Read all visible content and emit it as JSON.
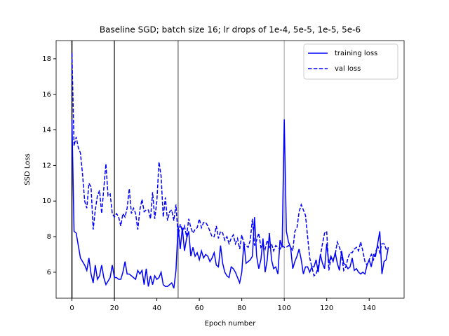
{
  "chart_data": {
    "type": "line",
    "title": "Baseline SGD; batch size 16; lr drops of 1e-4, 5e-5, 1e-5, 5e-6",
    "xlabel": "Epoch number",
    "ylabel": "SSD Loss",
    "x": [
      0,
      1,
      2,
      3,
      4,
      5,
      6,
      7,
      8,
      9,
      10,
      11,
      12,
      13,
      14,
      15,
      16,
      17,
      18,
      19,
      20,
      21,
      22,
      23,
      24,
      25,
      26,
      27,
      28,
      29,
      30,
      31,
      32,
      33,
      34,
      35,
      36,
      37,
      38,
      39,
      40,
      41,
      42,
      43,
      44,
      45,
      46,
      47,
      48,
      49,
      50,
      51,
      52,
      53,
      54,
      55,
      56,
      57,
      58,
      59,
      60,
      61,
      62,
      63,
      64,
      65,
      66,
      67,
      68,
      69,
      70,
      71,
      72,
      73,
      74,
      75,
      76,
      77,
      78,
      79,
      80,
      81,
      82,
      83,
      84,
      85,
      86,
      87,
      88,
      89,
      90,
      91,
      92,
      93,
      94,
      95,
      96,
      97,
      98,
      99,
      100,
      101,
      102,
      103,
      104,
      105,
      106,
      107,
      108,
      109,
      110,
      111,
      112,
      113,
      114,
      115,
      116,
      117,
      118,
      119,
      120,
      121,
      122,
      123,
      124,
      125,
      126,
      127,
      128,
      129,
      130,
      131,
      132,
      133,
      134,
      135,
      136,
      137,
      138,
      139,
      140,
      141,
      142,
      143,
      144,
      145,
      146,
      147,
      148,
      149
    ],
    "series": [
      {
        "name": "training loss",
        "color": "#0000ff",
        "linestyle": "solid",
        "values": [
          14.6,
          8.3,
          8.2,
          7.5,
          6.8,
          6.6,
          6.4,
          6.1,
          6.8,
          5.9,
          5.4,
          6.4,
          5.6,
          5.8,
          6.4,
          5.7,
          5.3,
          5.5,
          5.7,
          6.4,
          5.7,
          5.7,
          5.6,
          5.6,
          6.0,
          6.6,
          5.9,
          5.9,
          5.8,
          5.7,
          5.6,
          6.1,
          5.9,
          6.1,
          5.3,
          6.2,
          5.2,
          5.8,
          5.3,
          5.8,
          5.6,
          5.7,
          6.0,
          5.3,
          5.2,
          5.2,
          5.3,
          5.4,
          5.1,
          6.1,
          8.6,
          7.3,
          8.5,
          7.2,
          7.9,
          8.3,
          6.9,
          7.4,
          6.9,
          7.1,
          6.7,
          7.2,
          6.8,
          7.0,
          6.9,
          6.6,
          6.8,
          7.1,
          6.4,
          6.3,
          7.5,
          6.5,
          6.0,
          5.8,
          5.7,
          6.3,
          6.2,
          6.0,
          5.7,
          5.4,
          6.0,
          7.7,
          6.5,
          6.6,
          6.7,
          6.9,
          9.1,
          6.9,
          6.2,
          6.7,
          7.9,
          6.0,
          6.7,
          8.2,
          6.7,
          6.2,
          6.3,
          5.9,
          7.8,
          7.4,
          14.6,
          8.3,
          7.7,
          7.4,
          6.2,
          6.6,
          6.9,
          7.3,
          6.7,
          5.9,
          6.3,
          6.3,
          6.0,
          6.3,
          6.3,
          6.7,
          6.0,
          7.0,
          6.5,
          6.2,
          7.6,
          6.5,
          6.9,
          6.6,
          7.1,
          6.5,
          6.1,
          7.2,
          6.5,
          6.4,
          6.2,
          6.3,
          6.8,
          6.1,
          6.2,
          6.0,
          5.9,
          6.0,
          5.9,
          6.4,
          6.7,
          6.3,
          7.0,
          6.9,
          7.6,
          8.3,
          5.9,
          6.6,
          6.7,
          7.4
        ]
      },
      {
        "name": "val loss",
        "color": "#0000ff",
        "linestyle": "dashed",
        "values": [
          18.3,
          13.1,
          13.6,
          13.0,
          12.7,
          11.5,
          10.0,
          9.6,
          11.0,
          10.8,
          8.4,
          9.5,
          10.3,
          10.6,
          9.3,
          10.7,
          12.1,
          10.3,
          10.4,
          9.3,
          9.1,
          9.3,
          9.1,
          8.6,
          9.3,
          9.1,
          9.6,
          10.7,
          9.3,
          9.6,
          9.3,
          8.4,
          9.5,
          10.1,
          9.4,
          9.5,
          9.5,
          9.0,
          10.5,
          9.0,
          10.0,
          12.2,
          11.4,
          9.1,
          10.2,
          8.9,
          9.4,
          9.5,
          8.9,
          9.8,
          8.0,
          8.7,
          8.3,
          8.6,
          8.0,
          9.0,
          8.5,
          8.2,
          8.4,
          8.5,
          9.0,
          8.5,
          8.8,
          8.8,
          8.6,
          8.3,
          8.0,
          8.0,
          8.6,
          7.9,
          8.3,
          8.2,
          7.8,
          8.0,
          7.6,
          7.9,
          8.1,
          7.6,
          7.9,
          7.3,
          8.1,
          7.6,
          7.5,
          7.4,
          7.8,
          9.0,
          7.5,
          7.8,
          8.2,
          7.4,
          7.6,
          7.3,
          7.8,
          7.4,
          7.6,
          7.2,
          7.5,
          7.4,
          7.3,
          7.5,
          7.4,
          7.4,
          7.5,
          7.4,
          7.2,
          8.3,
          8.5,
          9.4,
          9.8,
          9.5,
          9.2,
          8.0,
          6.8,
          6.3,
          5.8,
          5.9,
          6.3,
          6.9,
          7.6,
          8.2,
          8.3,
          6.1,
          6.8,
          6.7,
          7.0,
          7.7,
          7.4,
          7.0,
          6.1,
          6.3,
          6.8,
          7.1,
          7.1,
          7.3,
          7.4,
          7.2,
          7.7,
          7.2,
          6.6,
          6.4,
          6.7,
          7.0,
          6.7,
          7.1,
          7.5,
          7.1,
          7.6,
          7.6,
          7.3,
          7.4
        ]
      }
    ],
    "vlines": [
      {
        "value": 0,
        "color": "#000000"
      },
      {
        "value": 20,
        "color": "#404040"
      },
      {
        "value": 50,
        "color": "#808080"
      },
      {
        "value": 100,
        "color": "#bfbfbf"
      }
    ],
    "xlim": [
      -7.45,
      156.45
    ],
    "ylim": [
      4.54,
      19.02
    ],
    "xticks": [
      0,
      20,
      40,
      60,
      80,
      100,
      120,
      140
    ],
    "yticks": [
      6,
      8,
      10,
      12,
      14,
      16,
      18
    ],
    "legend": "upper right"
  }
}
